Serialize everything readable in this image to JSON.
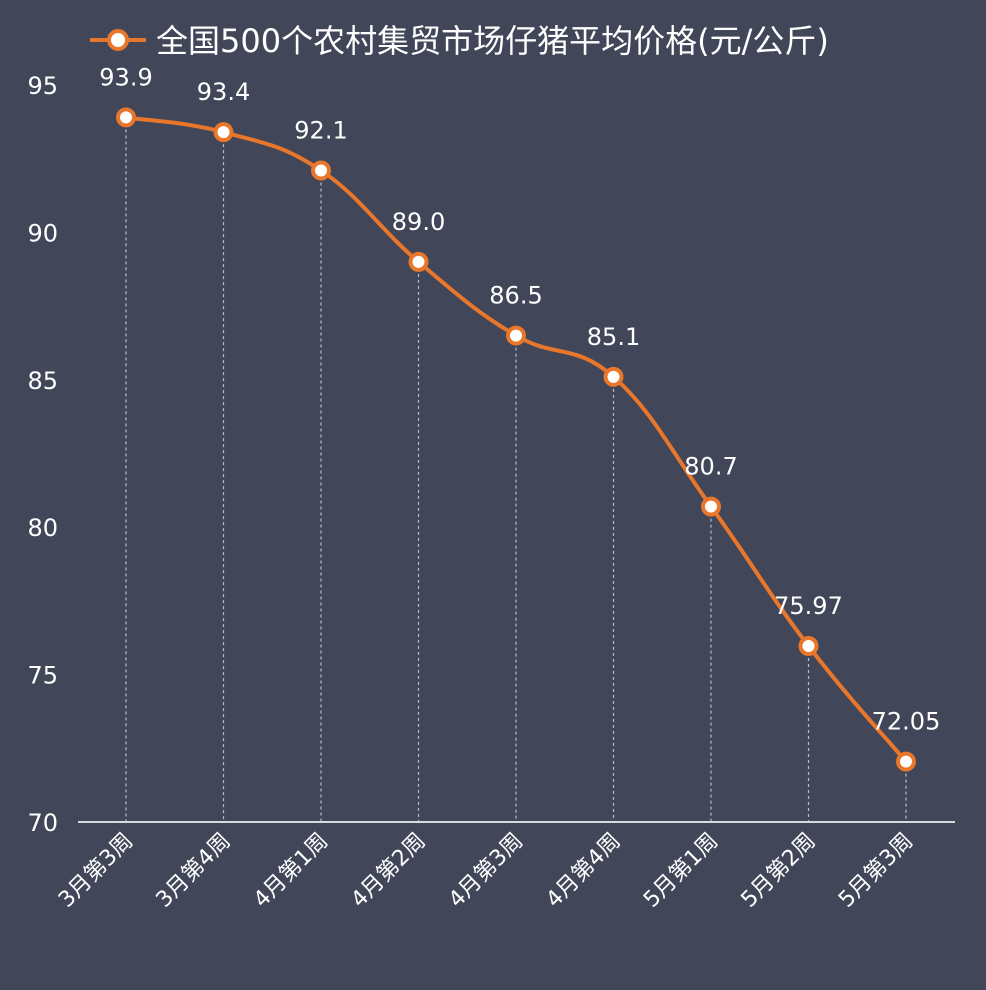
{
  "chart_data": {
    "type": "line",
    "title": "",
    "xlabel": "",
    "ylabel": "",
    "legend": {
      "position": "top",
      "entries": [
        "全国500个农村集贸市场仔猪平均价格(元/公斤)"
      ]
    },
    "categories": [
      "3月第3周",
      "3月第4周",
      "4月第1周",
      "4月第2周",
      "4月第3周",
      "4月第4周",
      "5月第1周",
      "5月第2周",
      "5月第3周"
    ],
    "series": [
      {
        "name": "全国500个农村集贸市场仔猪平均价格(元/公斤)",
        "values": [
          93.9,
          93.4,
          92.1,
          89.0,
          86.5,
          85.1,
          80.7,
          75.97,
          72.05
        ],
        "labels": [
          "93.9",
          "93.4",
          "92.1",
          "89.0",
          "86.5",
          "85.1",
          "80.7",
          "75.97",
          "72.05"
        ]
      }
    ],
    "ylim": [
      70,
      95
    ],
    "yticks": [
      "70",
      "75",
      "80",
      "85",
      "90",
      "95"
    ],
    "grid": false,
    "drop_lines": true,
    "colors": {
      "background": "#424659",
      "line": "#e8762b",
      "marker_fill": "#ffffff",
      "text": "#ffffff",
      "axis": "#d8dae0",
      "drop_line": "#b8bcc6"
    }
  }
}
